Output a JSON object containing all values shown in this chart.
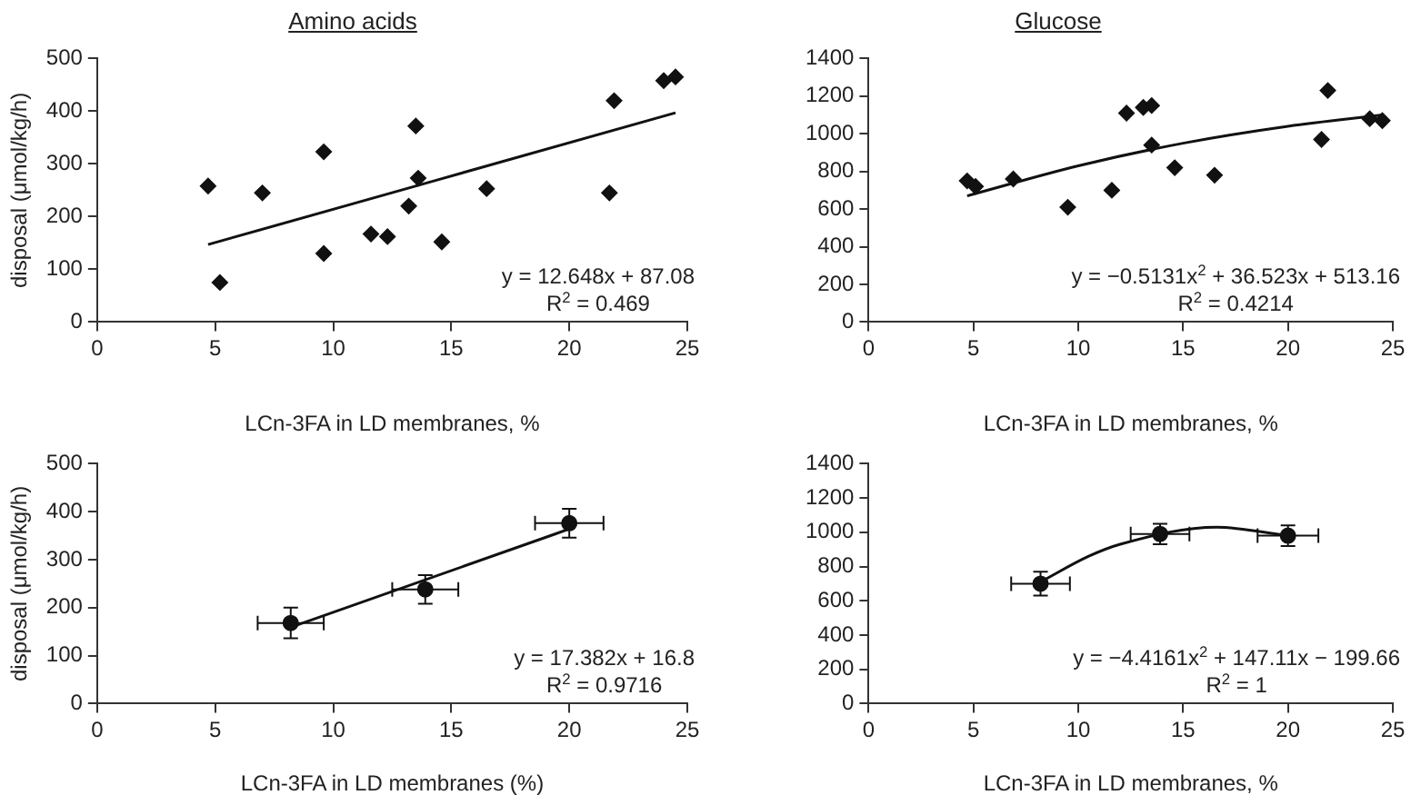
{
  "chart_data": [
    {
      "type": "scatter",
      "title": "Amino acids",
      "xlabel": "LCn-3FA in LD membranes, %",
      "ylabel": "disposal (μmol/kg/h)",
      "marker": "diamond",
      "xlim": [
        0,
        25
      ],
      "xticks": [
        0,
        5,
        10,
        15,
        20,
        25
      ],
      "ylim": [
        0,
        500
      ],
      "yticks": [
        0,
        100,
        200,
        300,
        400,
        500
      ],
      "x": [
        4.7,
        5.2,
        7,
        9.6,
        9.6,
        11.6,
        12.3,
        13.2,
        13.5,
        13.6,
        14.6,
        16.5,
        21.7,
        21.9,
        24,
        24.5
      ],
      "series": [
        {
          "color": "#111111",
          "values": [
            258,
            75,
            245,
            323,
            130,
            167,
            162,
            220,
            372,
            273,
            152,
            253,
            245,
            420,
            458,
            465
          ]
        },
        {
          "type": "line",
          "marker": "none",
          "color": "#111111",
          "x": [
            4.7,
            24.5
          ],
          "values": [
            147,
            397
          ]
        }
      ],
      "annotations": [
        "y = 12.648x + 87.08",
        "R$^{2}$ = 0.469"
      ]
    },
    {
      "type": "scatter",
      "title": "Glucose",
      "xlabel": "LCn-3FA in LD membranes, %",
      "marker": "diamond",
      "xlim": [
        0,
        25
      ],
      "xticks": [
        0,
        5,
        10,
        15,
        20,
        25
      ],
      "ylim": [
        0,
        1400
      ],
      "yticks": [
        0,
        200,
        400,
        600,
        800,
        1000,
        1200,
        1400
      ],
      "x": [
        4.7,
        5.1,
        6.9,
        9.5,
        11.6,
        12.3,
        13.1,
        13.5,
        13.5,
        14.6,
        16.5,
        21.6,
        21.9,
        23.9,
        24.5
      ],
      "series": [
        {
          "color": "#111111",
          "values": [
            750,
            720,
            760,
            610,
            700,
            1110,
            1140,
            1150,
            940,
            820,
            780,
            970,
            1230,
            1080,
            1070
          ]
        },
        {
          "type": "line",
          "marker": "none",
          "color": "#111111",
          "x": [
            4.7,
            10,
            15,
            20,
            24.5
          ],
          "values": [
            670,
            830,
            950,
            1040,
            1100
          ]
        }
      ],
      "annotations": [
        "y = −0.5131x$^{2}$ + 36.523x + 513.16",
        "R$^{2}$ = 0.4214"
      ]
    },
    {
      "type": "scatter",
      "xlabel": "LCn-3FA in LD membranes (%)",
      "ylabel": "disposal (μmol/kg/h)",
      "marker": "circle",
      "xlim": [
        0,
        25
      ],
      "xticks": [
        0,
        5,
        10,
        15,
        20,
        25
      ],
      "ylim": [
        0,
        500
      ],
      "yticks": [
        0,
        100,
        200,
        300,
        400,
        500
      ],
      "x": [
        8.2,
        13.9,
        20
      ],
      "series": [
        {
          "color": "#111111",
          "values": [
            168,
            238,
            376
          ],
          "errors": [
            32,
            30,
            30
          ],
          "xerrors": [
            1.4,
            1.4,
            1.45
          ]
        },
        {
          "type": "line",
          "marker": "none",
          "color": "#111111",
          "x": [
            8.2,
            20
          ],
          "values": [
            159,
            364
          ]
        }
      ],
      "annotations": [
        "y = 17.382x + 16.8",
        "R$^{2}$ = 0.9716"
      ]
    },
    {
      "type": "scatter",
      "xlabel": "LCn-3FA in LD membranes, %",
      "marker": "circle",
      "xlim": [
        0,
        25
      ],
      "xticks": [
        0,
        5,
        10,
        15,
        20,
        25
      ],
      "ylim": [
        0,
        1400
      ],
      "yticks": [
        0,
        200,
        400,
        600,
        800,
        1000,
        1200,
        1400
      ],
      "x": [
        8.2,
        13.9,
        20
      ],
      "series": [
        {
          "color": "#111111",
          "values": [
            700,
            990,
            980
          ],
          "errors": [
            70,
            60,
            60
          ],
          "xerrors": [
            1.4,
            1.4,
            1.45
          ]
        },
        {
          "type": "line",
          "marker": "none",
          "color": "#111111",
          "x": [
            8.2,
            10.5,
            12,
            16.6,
            20
          ],
          "values": [
            710,
            860,
            930,
            1030,
            980
          ]
        }
      ],
      "annotations": [
        "y = −4.4161x$^{2}$ + 147.11x − 199.66",
        "R$^{2}$ = 1"
      ]
    }
  ]
}
